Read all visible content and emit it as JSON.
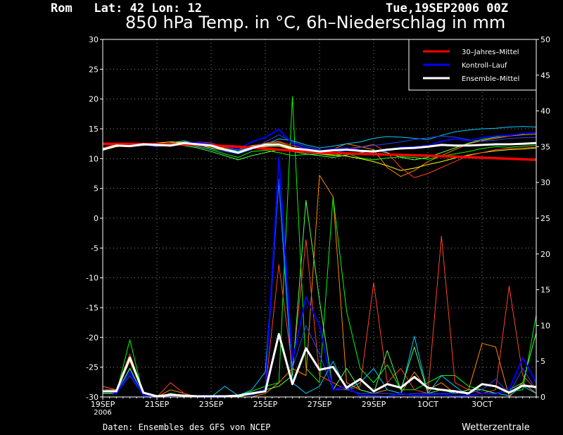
{
  "header": {
    "location": "Rom   Lat: 42 Lon: 12",
    "run": "Tue,19SEP2006 00Z",
    "title": "850 hPa Temp. in °C, 6h–Niederschlag in mm"
  },
  "footer": {
    "credit": "Daten: Ensembles des GFS von NCEP",
    "brand": "Wetterzentrale"
  },
  "chart_data": {
    "type": "line",
    "title": "850 hPa Temp. in °C, 6h–Niederschlag in mm",
    "x_unit": "days since 19SEP 00Z",
    "xlim": [
      0,
      16
    ],
    "x_ticks": [
      {
        "x": 0,
        "label": "19SEP",
        "sub": "2006"
      },
      {
        "x": 2,
        "label": "21SEP"
      },
      {
        "x": 4,
        "label": "23SEP"
      },
      {
        "x": 6,
        "label": "25SEP"
      },
      {
        "x": 8,
        "label": "27SEP"
      },
      {
        "x": 10,
        "label": "29SEP"
      },
      {
        "x": 12,
        "label": "1OCT"
      },
      {
        "x": 14,
        "label": "3OCT"
      }
    ],
    "y_left": {
      "min": -30,
      "max": 30,
      "step": 5
    },
    "y_right": {
      "min": 0,
      "max": 50,
      "step": 5
    },
    "grid": true,
    "legend": {
      "position": "top-right",
      "entries": [
        {
          "name": "30–Jahres–Mittel",
          "color": "#ff0000"
        },
        {
          "name": "Kontroll–Lauf",
          "color": "#0000ff"
        },
        {
          "name": "Ensemble–Mittel",
          "color": "#ffffff"
        }
      ]
    },
    "temperature": {
      "climate": {
        "color": "#ff0000",
        "x": [
          0,
          3,
          5,
          8,
          12,
          16
        ],
        "y": [
          12.5,
          12.4,
          12.0,
          11.0,
          10.5,
          9.8
        ]
      },
      "control": {
        "color": "#0000ff",
        "x": [
          0,
          0.5,
          1,
          1.5,
          2,
          2.5,
          3,
          3.5,
          4,
          4.5,
          5,
          5.5,
          6,
          6.5,
          7,
          7.5,
          8,
          8.5,
          9,
          9.5,
          10,
          10.5,
          11,
          11.5,
          12,
          12.5,
          13,
          13.5,
          14,
          14.5,
          15,
          15.5,
          16
        ],
        "y": [
          11.5,
          12.3,
          12.2,
          12.4,
          12.3,
          12.1,
          12.6,
          12.7,
          12.4,
          12.0,
          11.6,
          12.8,
          13.6,
          14.9,
          12.5,
          11.7,
          11.3,
          11.6,
          11.8,
          11.4,
          11.2,
          11.3,
          11.9,
          12.0,
          12.2,
          12.9,
          13.3,
          13.0,
          13.5,
          13.8,
          13.9,
          14.2,
          14.3
        ]
      },
      "mean": {
        "color": "#ffffff",
        "x": [
          0,
          0.5,
          1,
          1.5,
          2,
          2.5,
          3,
          3.5,
          4,
          4.5,
          5,
          5.5,
          6,
          6.5,
          7,
          7.5,
          8,
          8.5,
          9,
          9.5,
          10,
          10.5,
          11,
          11.5,
          12,
          12.5,
          13,
          13.5,
          14,
          14.5,
          15,
          15.5,
          16
        ],
        "y": [
          11.5,
          12.2,
          12.1,
          12.4,
          12.3,
          12.2,
          12.6,
          12.4,
          12.2,
          11.5,
          11.0,
          11.8,
          12.3,
          12.4,
          11.7,
          11.5,
          11.2,
          11.4,
          11.5,
          11.3,
          11.2,
          11.5,
          11.7,
          11.8,
          12.0,
          12.3,
          12.2,
          12.2,
          12.3,
          12.4,
          12.4,
          12.5,
          12.6
        ]
      },
      "members": [
        {
          "color": "#00ff00",
          "y": [
            11.5,
            12.2,
            12.3,
            12.5,
            12.2,
            12.1,
            12.4,
            12.0,
            11.5,
            10.8,
            10.2,
            11.2,
            11.4,
            11.0,
            10.5,
            10.7,
            10.8,
            10.5,
            10.9,
            10.1,
            9.8,
            10.1,
            10.3,
            10.2,
            9.9,
            10.4,
            10.8,
            11.2,
            11.7,
            12.0,
            11.9,
            12.1,
            12.2
          ]
        },
        {
          "color": "#ff8800",
          "y": [
            11.7,
            12.1,
            12.0,
            12.3,
            12.1,
            12.5,
            12.8,
            12.6,
            12.2,
            11.8,
            11.5,
            12.2,
            12.5,
            12.8,
            11.9,
            11.4,
            11.0,
            11.6,
            12.5,
            12.0,
            11.5,
            8.5,
            7.0,
            8.0,
            9.5,
            10.5,
            11.5,
            12.5,
            13.0,
            13.4,
            13.8,
            14.0,
            14.1
          ]
        },
        {
          "color": "#00ccff",
          "y": [
            11.6,
            12.3,
            12.0,
            12.2,
            12.4,
            12.6,
            13.0,
            12.4,
            12.0,
            11.6,
            11.3,
            12.0,
            12.4,
            13.3,
            13.0,
            12.3,
            11.8,
            12.1,
            12.5,
            12.8,
            13.4,
            13.7,
            13.6,
            13.4,
            13.2,
            13.9,
            14.5,
            14.8,
            15.0,
            15.1,
            15.3,
            15.4,
            15.3
          ]
        },
        {
          "color": "#ffff00",
          "y": [
            11.4,
            12.0,
            12.2,
            12.5,
            12.6,
            12.8,
            12.7,
            12.3,
            11.8,
            11.4,
            11.0,
            11.6,
            12.0,
            12.1,
            11.5,
            11.2,
            10.8,
            10.6,
            10.4,
            10.0,
            9.5,
            8.8,
            8.0,
            8.4,
            9.0,
            9.5,
            10.1,
            10.6,
            11.0,
            11.3,
            11.5,
            11.6,
            11.8
          ]
        },
        {
          "color": "#ff4422",
          "y": [
            11.8,
            12.4,
            12.1,
            12.2,
            12.3,
            12.0,
            12.5,
            12.8,
            12.6,
            12.0,
            11.6,
            12.1,
            12.6,
            12.9,
            12.2,
            11.7,
            11.1,
            11.3,
            11.7,
            11.9,
            12.4,
            11.0,
            8.5,
            6.8,
            7.5,
            8.5,
            9.5,
            10.5,
            11.0,
            11.5,
            11.7,
            11.8,
            11.9
          ]
        },
        {
          "color": "#2244ff",
          "y": [
            11.5,
            12.1,
            12.4,
            12.3,
            12.0,
            12.3,
            12.5,
            12.1,
            11.6,
            11.2,
            10.8,
            11.5,
            12.8,
            14.0,
            12.8,
            12.0,
            11.5,
            11.0,
            11.4,
            11.9,
            12.2,
            12.5,
            12.8,
            13.2,
            13.5,
            13.8,
            13.6,
            13.2,
            12.9,
            13.1,
            13.4,
            13.5,
            13.6
          ]
        },
        {
          "color": "#55ff55",
          "y": [
            11.6,
            12.2,
            12.1,
            12.4,
            12.5,
            12.4,
            12.2,
            11.8,
            11.2,
            10.5,
            9.8,
            10.5,
            11.0,
            11.5,
            11.2,
            10.8,
            10.5,
            10.2,
            10.6,
            11.0,
            11.4,
            11.0,
            10.2,
            9.8,
            10.2,
            11.0,
            11.8,
            12.6,
            13.2,
            13.6,
            13.9,
            14.1,
            14.4
          ]
        }
      ]
    },
    "precipitation": {
      "control": {
        "color": "#0000ff",
        "y": [
          1.0,
          0.5,
          3.5,
          0.2,
          0.0,
          0.2,
          0.2,
          0.0,
          0.0,
          0.0,
          0.2,
          0.5,
          1.0,
          33.5,
          5.0,
          14.0,
          10.0,
          1.0,
          1.5,
          0.2,
          0.2,
          0.0,
          0.5,
          0.2,
          0.3,
          0.4,
          0.1,
          0.2,
          0.5,
          0.4,
          1.0,
          5.5,
          2.0
        ]
      },
      "mean": {
        "color": "#ffffff",
        "y": [
          0.8,
          0.8,
          5.5,
          0.6,
          0.1,
          0.3,
          0.2,
          0.1,
          0.1,
          0.1,
          0.2,
          0.5,
          0.8,
          8.8,
          1.8,
          6.8,
          3.8,
          4.2,
          1.3,
          2.5,
          0.8,
          1.8,
          1.3,
          2.8,
          1.3,
          1.0,
          0.8,
          0.5,
          1.8,
          1.5,
          0.6,
          1.6,
          1.4
        ]
      },
      "members": [
        {
          "color": "#00ff00",
          "y": [
            0.5,
            0.5,
            8.0,
            0.2,
            0.0,
            0.3,
            0.2,
            0.0,
            0.0,
            0.0,
            0.2,
            0.8,
            1.5,
            2.0,
            42.0,
            4.0,
            2.0,
            28.0,
            12.0,
            4.0,
            2.0,
            4.5,
            1.0,
            1.0,
            2.0,
            3.0,
            3.0,
            1.5,
            1.0,
            0.5,
            0.8,
            1.0,
            11.5
          ]
        },
        {
          "color": "#ff8800",
          "y": [
            1.5,
            1.0,
            5.0,
            0.5,
            0.0,
            1.0,
            0.5,
            0.0,
            0.0,
            0.0,
            0.0,
            0.0,
            0.5,
            2.0,
            4.0,
            3.0,
            31.0,
            28.0,
            2.0,
            1.0,
            0.5,
            1.0,
            0.5,
            3.5,
            1.0,
            2.0,
            0.5,
            1.0,
            7.5,
            7.0,
            0.0,
            2.0,
            0.5
          ]
        },
        {
          "color": "#00ccff",
          "y": [
            0.5,
            0.5,
            4.0,
            0.2,
            0.0,
            0.0,
            0.0,
            0.0,
            0.0,
            1.5,
            0.2,
            1.0,
            3.5,
            30.0,
            2.0,
            0.5,
            1.5,
            5.0,
            1.0,
            2.0,
            4.0,
            1.0,
            0.5,
            8.5,
            0.5,
            3.0,
            1.5,
            0.2,
            0.5,
            0.5,
            0.2,
            1.5,
            0.5
          ]
        },
        {
          "color": "#ff4422",
          "y": [
            1.0,
            1.0,
            6.0,
            0.5,
            0.0,
            2.0,
            0.5,
            0.0,
            0.0,
            0.0,
            0.0,
            0.5,
            1.0,
            18.5,
            4.0,
            22.0,
            3.0,
            2.0,
            1.0,
            1.5,
            16.0,
            2.0,
            4.0,
            1.0,
            0.5,
            22.5,
            2.0,
            1.0,
            0.5,
            1.0,
            15.5,
            3.0,
            1.0
          ]
        },
        {
          "color": "#55ff55",
          "y": [
            0.5,
            0.5,
            4.0,
            0.2,
            0.0,
            0.5,
            0.2,
            0.0,
            0.0,
            0.0,
            0.0,
            0.5,
            1.0,
            1.5,
            3.0,
            27.5,
            13.5,
            1.0,
            4.0,
            1.0,
            0.5,
            6.5,
            1.0,
            7.0,
            0.5,
            1.0,
            0.5,
            1.0,
            1.0,
            0.5,
            1.0,
            2.0,
            9.0
          ]
        },
        {
          "color": "#2244ff",
          "y": [
            1.0,
            0.5,
            3.0,
            0.2,
            0.0,
            0.2,
            0.2,
            0.0,
            0.0,
            0.0,
            0.2,
            0.3,
            0.8,
            30.5,
            4.0,
            10.0,
            6.0,
            1.0,
            1.0,
            0.5,
            0.5,
            0.5,
            0.3,
            0.5,
            0.5,
            0.5,
            0.5,
            0.5,
            1.0,
            2.5,
            0.5,
            4.0,
            1.0
          ]
        }
      ]
    }
  }
}
